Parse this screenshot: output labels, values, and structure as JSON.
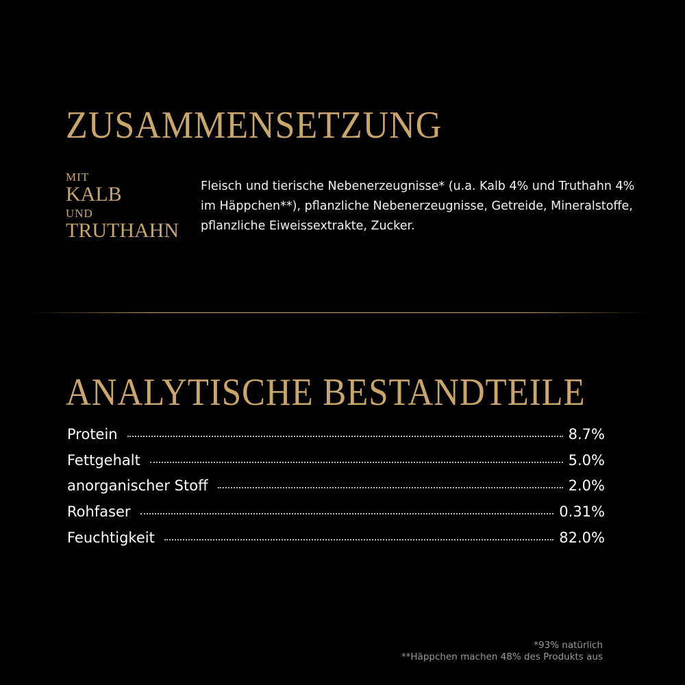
{
  "composition": {
    "title": "ZUSAMMENSETZUNG",
    "tagline": {
      "line1": "MIT",
      "line2": "KALB",
      "line3": "UND",
      "line4": "TRUTHAHN"
    },
    "description": "Fleisch und tierische Nebenerzeugnisse* (u.a. Kalb 4% und Truthahn 4% im Häppchen**), pflanzliche Nebenerzeugnisse, Getreide, Mineralstoffe, pflanzliche Eiweissextrakte, Zucker."
  },
  "analysis": {
    "title": "ANALYTISCHE BESTANDTEILE",
    "rows": [
      {
        "label": "Protein",
        "value": "8.7%"
      },
      {
        "label": "Fettgehalt",
        "value": "5.0%"
      },
      {
        "label": "anorganischer Stoff",
        "value": "2.0%"
      },
      {
        "label": "Rohfaser",
        "value": "0.31%"
      },
      {
        "label": "Feuchtigkeit",
        "value": "82.0%"
      }
    ]
  },
  "footnotes": {
    "note1": "*93% natürlich",
    "note2": "**Häppchen machen 48% des Produkts aus"
  },
  "colors": {
    "accent": "#c9a76c",
    "background": "#000000"
  }
}
